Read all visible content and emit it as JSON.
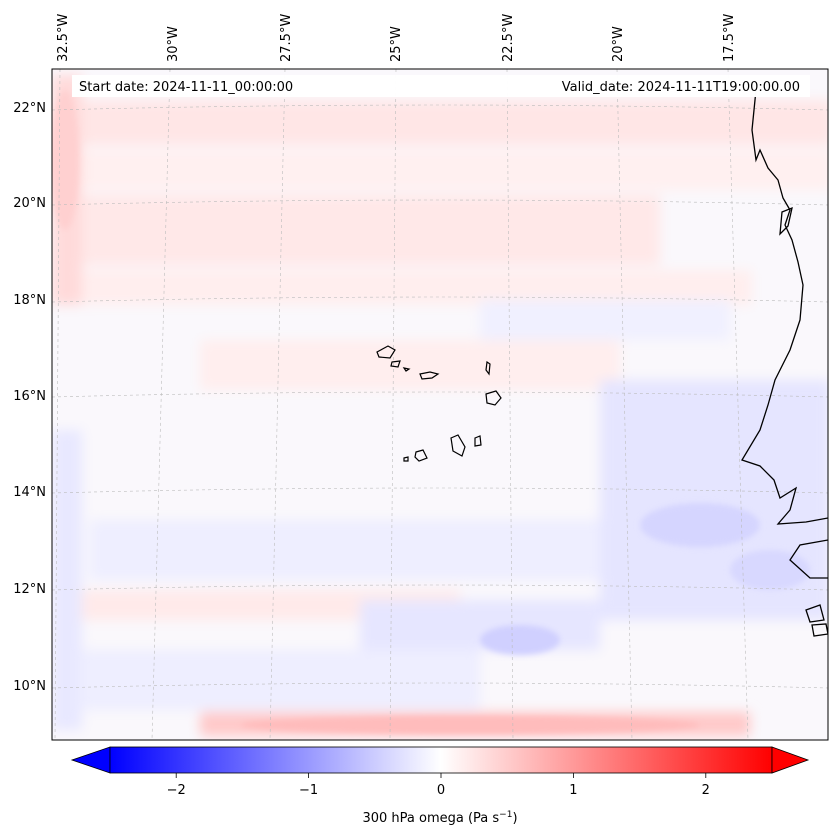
{
  "map": {
    "header": {
      "start_date": "Start date: 2024-11-11_00:00:00",
      "valid_date": "Valid_date: 2024-11-11T19:00:00.00"
    },
    "lon_labels": [
      "32.5°W",
      "30°W",
      "27.5°W",
      "25°W",
      "22.5°W",
      "20°W",
      "17.5°W"
    ],
    "lat_labels": [
      "22°N",
      "20°N",
      "18°N",
      "16°N",
      "14°N",
      "12°N",
      "10°N"
    ],
    "colors": {
      "positive": "#ff0000",
      "negative": "#0000ff",
      "neutral": "#ffffff",
      "coastline": "#000000",
      "gridline": "#bbbbbb"
    }
  },
  "colorbar": {
    "ticks": [
      {
        "value": -2,
        "label": "−2"
      },
      {
        "value": -1,
        "label": "−1"
      },
      {
        "value": 0,
        "label": "0"
      },
      {
        "value": 1,
        "label": "1"
      },
      {
        "value": 2,
        "label": "2"
      }
    ],
    "label": "300 hPa omega (Pa s",
    "label_exponent": "−1",
    "label_suffix": ")",
    "vmin": -2.5,
    "vmax": 2.5
  }
}
